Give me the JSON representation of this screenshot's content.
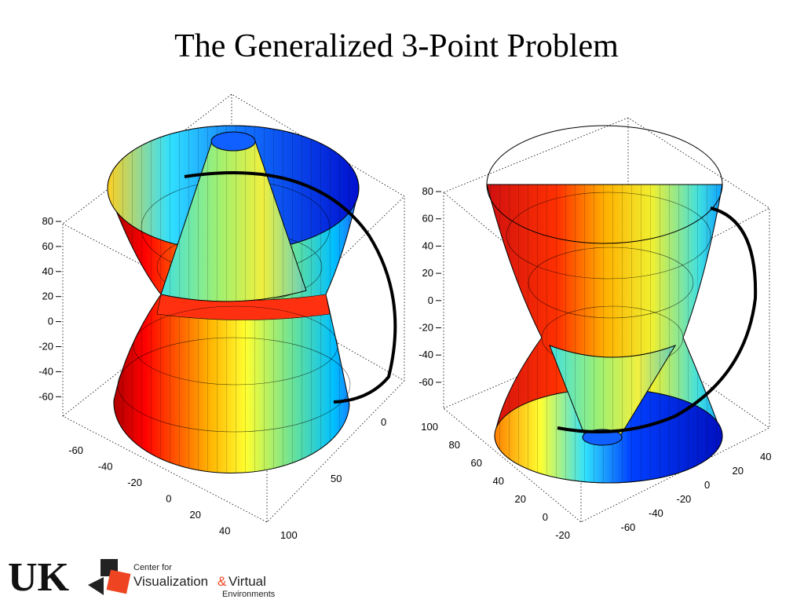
{
  "slide": {
    "title": "The Generalized 3-Point Problem",
    "plots": [
      {
        "z_ticks": [
          "80",
          "60",
          "40",
          "20",
          "0",
          "-20",
          "-40",
          "-60"
        ],
        "left_axis_ticks": [
          "-60",
          "-40",
          "-20",
          "0",
          "20",
          "40"
        ],
        "right_axis_ticks": [
          "0",
          "50",
          "100"
        ]
      },
      {
        "z_ticks": [
          "80",
          "60",
          "40",
          "20",
          "0",
          "-20",
          "-40",
          "-60"
        ],
        "left_axis_ticks": [
          "100",
          "80",
          "60",
          "40",
          "20",
          "0",
          "-20"
        ],
        "right_axis_ticks": [
          "40",
          "20",
          "0",
          "-20",
          "-40",
          "-60"
        ]
      }
    ],
    "logo": {
      "mark": "UK",
      "line1": "Center for",
      "line2": "Visualization",
      "amp": "&",
      "line3": "Virtual",
      "line4": "Environments"
    }
  }
}
